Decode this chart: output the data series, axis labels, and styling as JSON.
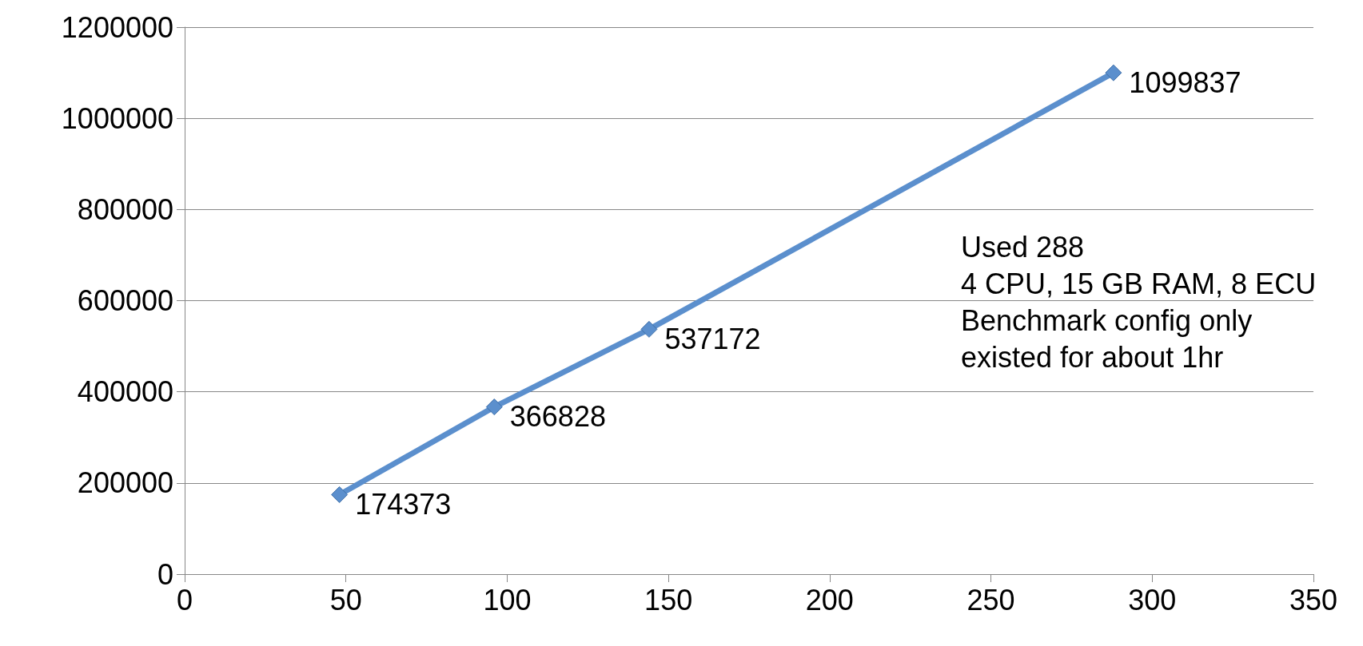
{
  "chart_data": {
    "type": "line",
    "x": [
      48,
      96,
      144,
      288
    ],
    "series": [
      {
        "color": "#5b8fcd",
        "values": [
          174373,
          366828,
          537172,
          1099837
        ]
      }
    ],
    "xlim": [
      0,
      350
    ],
    "xticks": [
      0,
      50,
      100,
      150,
      200,
      250,
      300,
      350
    ],
    "ylim": [
      0,
      1200000
    ],
    "yticks": [
      0,
      200000,
      400000,
      600000,
      800000,
      1000000,
      1200000
    ],
    "grid": "y",
    "marker": "diamond",
    "line_style": "solid",
    "data_labels": true,
    "annotations": [
      "Used 288",
      "4 CPU, 15 GB RAM, 8 ECU",
      "Benchmark config only",
      "existed for about 1hr"
    ]
  }
}
